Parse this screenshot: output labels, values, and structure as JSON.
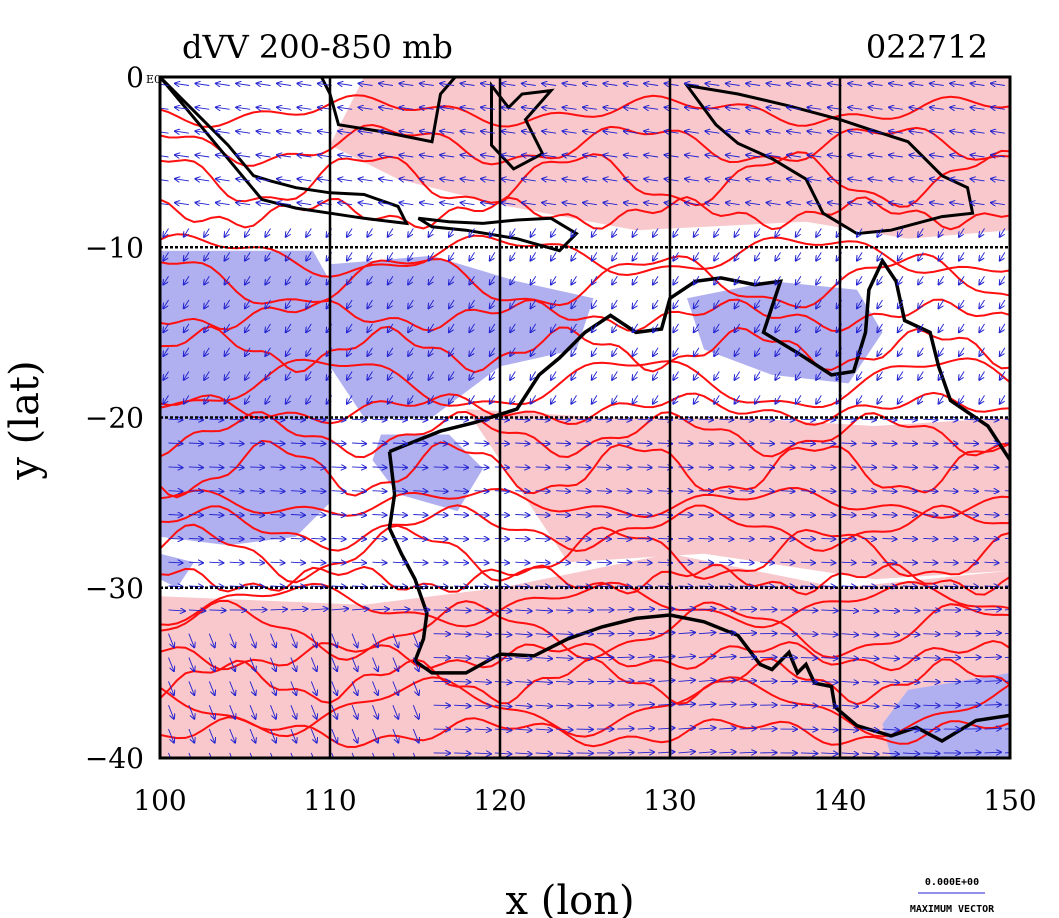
{
  "title_left": "dVV 200-850 mb",
  "title_right": "022712",
  "x_axis": {
    "label": "x (lon)",
    "ticks": [
      100,
      110,
      120,
      130,
      140,
      150
    ],
    "tick_labels": [
      "100",
      "110",
      "120",
      "130",
      "140",
      "150"
    ]
  },
  "y_axis": {
    "label": "y (lat)",
    "ticks": [
      0,
      -10,
      -20,
      -30,
      -40
    ],
    "tick_labels": [
      "0",
      "−10",
      "−20",
      "−30",
      "−40"
    ],
    "corner_tag": "E0"
  },
  "colors": {
    "positive_fill": "#f8c8cc",
    "negative_fill": "#b0b0f0",
    "contour": "#ff1010",
    "vector": "#2020d0",
    "coast": "#000000",
    "grid": "#000000"
  },
  "legend": {
    "magnitude": "0.000E+00",
    "label": "MAXIMUM VECTOR"
  },
  "chart_data": {
    "type": "map",
    "region": {
      "lon_range": [
        100,
        150
      ],
      "lat_range": [
        -40,
        0
      ]
    },
    "grid_lines": {
      "lon": [
        110,
        120,
        130,
        140
      ],
      "lat": [
        -10,
        -20,
        -30
      ]
    },
    "shaded_regions": [
      {
        "sign": "negative",
        "lon": [
          100,
          110
        ],
        "lat": [
          -30,
          -10
        ]
      },
      {
        "sign": "negative",
        "lon": [
          110,
          125
        ],
        "lat": [
          -26,
          -11
        ]
      },
      {
        "sign": "negative",
        "lon": [
          130,
          142
        ],
        "lat": [
          -19,
          -12
        ]
      },
      {
        "sign": "negative",
        "lon": [
          143,
          150
        ],
        "lat": [
          -40,
          -35
        ]
      },
      {
        "sign": "positive",
        "lon": [
          120,
          150
        ],
        "lat": [
          -30,
          -20
        ]
      },
      {
        "sign": "positive",
        "lon": [
          100,
          150
        ],
        "lat": [
          -40,
          -30
        ]
      },
      {
        "sign": "positive",
        "lon": [
          110,
          150
        ],
        "lat": [
          -10,
          0
        ]
      }
    ]
  }
}
